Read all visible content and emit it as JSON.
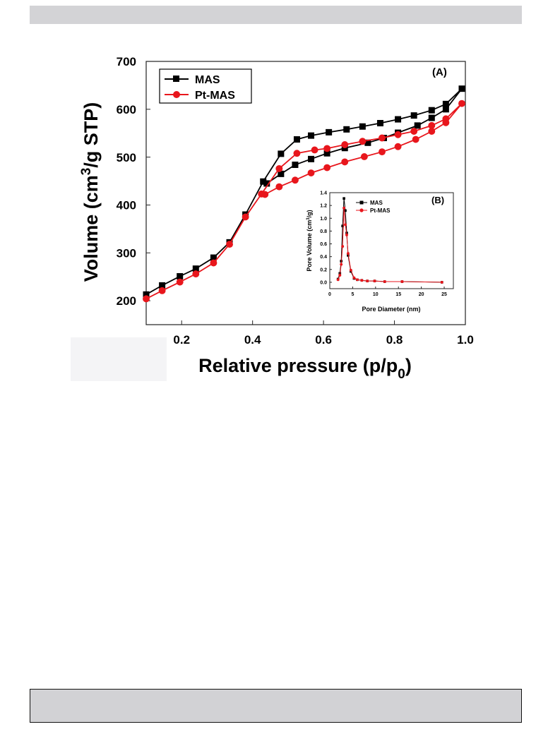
{
  "chart_data": [
    {
      "type": "line",
      "panel_label": "(A)",
      "xlabel_main": "Relative pressure (p/p",
      "xlabel_sub": "0",
      "xlabel_end": ")",
      "ylabel_pre": "Volume (cm",
      "ylabel_sup": "3",
      "ylabel_post": "/g STP)",
      "xlim": [
        0.1,
        1.0
      ],
      "ylim": [
        150,
        700
      ],
      "xticks": [
        0.2,
        0.4,
        0.6,
        0.8,
        1.0
      ],
      "xtick_labels": [
        "0.2",
        "0.4",
        "0.6",
        "0.8",
        "1.0"
      ],
      "yticks": [
        200,
        300,
        400,
        500,
        600,
        700
      ],
      "ytick_labels": [
        "200",
        "300",
        "400",
        "500",
        "600",
        "700"
      ],
      "legend_position": "top-left",
      "series": [
        {
          "name": "MAS",
          "color": "#000000",
          "marker": "square",
          "x": [
            0.1,
            0.145,
            0.195,
            0.24,
            0.29,
            0.335,
            0.38,
            0.43,
            0.48,
            0.525,
            0.565,
            0.615,
            0.665,
            0.71,
            0.76,
            0.81,
            0.855,
            0.905,
            0.945,
            0.99,
            0.945,
            0.905,
            0.865,
            0.81,
            0.77,
            0.725,
            0.66,
            0.61,
            0.565,
            0.52,
            0.48,
            0.44
          ],
          "y": [
            213,
            232,
            251,
            267,
            290,
            322,
            380,
            449,
            507,
            537,
            545,
            552,
            558,
            564,
            571,
            579,
            587,
            598,
            611,
            643,
            600,
            582,
            566,
            551,
            540,
            530,
            519,
            508,
            496,
            484,
            465,
            445
          ]
        },
        {
          "name": "Pt-MAS",
          "color": "#e8161c",
          "marker": "circle",
          "x": [
            0.1,
            0.145,
            0.195,
            0.24,
            0.29,
            0.335,
            0.38,
            0.425,
            0.475,
            0.525,
            0.575,
            0.61,
            0.66,
            0.71,
            0.765,
            0.81,
            0.855,
            0.905,
            0.945,
            0.99,
            0.945,
            0.905,
            0.86,
            0.81,
            0.765,
            0.715,
            0.66,
            0.61,
            0.565,
            0.52,
            0.475,
            0.435
          ],
          "y": [
            204,
            221,
            239,
            256,
            279,
            318,
            375,
            423,
            476,
            508,
            515,
            518,
            526,
            533,
            540,
            547,
            554,
            566,
            580,
            612,
            572,
            554,
            537,
            522,
            511,
            501,
            490,
            478,
            467,
            452,
            438,
            422
          ]
        }
      ]
    },
    {
      "type": "line",
      "panel_label": "(B)",
      "xlabel": "Pore Diameter (nm)",
      "ylabel_pre": "Pore Volume (cm",
      "ylabel_sup": "3",
      "ylabel_post": "/g)",
      "xlim": [
        0,
        27
      ],
      "ylim": [
        -0.1,
        1.4
      ],
      "xticks": [
        0,
        5,
        10,
        15,
        20,
        25
      ],
      "xtick_labels": [
        "0",
        "5",
        "10",
        "15",
        "20",
        "25"
      ],
      "yticks": [
        0.0,
        0.2,
        0.4,
        0.6,
        0.8,
        1.0,
        1.2,
        1.4
      ],
      "ytick_labels": [
        "0.0",
        "0.2",
        "0.4",
        "0.6",
        "0.8",
        "1.0",
        "1.2",
        "1.4"
      ],
      "legend_position": "top-left",
      "series": [
        {
          "name": "MAS",
          "color": "#000000",
          "marker": "square",
          "x": [
            1.8,
            2.2,
            2.5,
            2.8,
            3.1,
            3.4,
            3.7,
            4.0,
            4.6,
            5.3,
            6.0,
            7.0,
            8.2,
            9.8,
            12.0,
            15.8,
            24.5
          ],
          "y": [
            0.05,
            0.14,
            0.33,
            0.88,
            1.31,
            1.12,
            0.77,
            0.42,
            0.17,
            0.06,
            0.04,
            0.03,
            0.02,
            0.02,
            0.01,
            0.01,
            0.0
          ]
        },
        {
          "name": "Pt-MAS",
          "color": "#e8161c",
          "marker": "circle",
          "x": [
            1.8,
            2.2,
            2.5,
            2.8,
            3.1,
            3.4,
            3.7,
            4.0,
            4.6,
            5.3,
            6.0,
            7.0,
            8.2,
            9.8,
            12.0,
            15.8,
            24.5
          ],
          "y": [
            0.04,
            0.11,
            0.28,
            0.56,
            1.16,
            0.9,
            0.74,
            0.45,
            0.19,
            0.07,
            0.04,
            0.03,
            0.02,
            0.02,
            0.01,
            0.01,
            0.0
          ]
        }
      ]
    }
  ]
}
